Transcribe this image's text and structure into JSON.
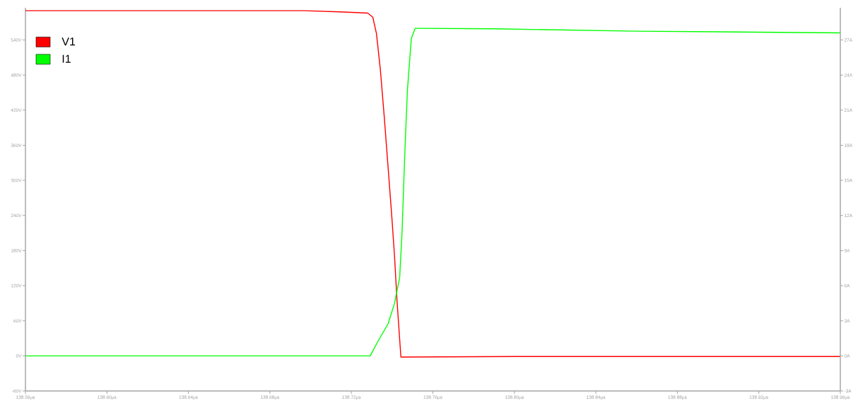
{
  "chart_data": {
    "type": "line",
    "series": [
      {
        "name": "V1",
        "color": "#ff0000",
        "x": [
          138.56,
          138.6967,
          138.714,
          138.728,
          138.7305,
          138.7323,
          138.7342,
          138.7361,
          138.738,
          138.7399,
          138.7412,
          138.7424,
          138.7443,
          138.7456,
          138.8,
          138.96
        ],
        "values": [
          590,
          590,
          588,
          586,
          579,
          551,
          490,
          410,
          323,
          235,
          169,
          94,
          -2,
          -2,
          -1,
          -1
        ]
      },
      {
        "name": "I1",
        "color": "#00ff00",
        "axis": "y2",
        "x": [
          138.56,
          138.7292,
          138.7329,
          138.738,
          138.7412,
          138.7437,
          138.7449,
          138.7462,
          138.7475,
          138.7494,
          138.7513,
          138.7544,
          138.7904,
          138.8598,
          138.9291,
          138.96
        ],
        "values": [
          0,
          0,
          1.2,
          2.74,
          4.5,
          6.7,
          10.7,
          17.2,
          22.7,
          27.1,
          28.0,
          28.0,
          27.95,
          27.75,
          27.65,
          27.6
        ]
      }
    ],
    "xlim": [
      138.56,
      138.96
    ],
    "xticks": [
      {
        "value": 138.56,
        "label": "138.56µs"
      },
      {
        "value": 138.6,
        "label": "138.60µs"
      },
      {
        "value": 138.64,
        "label": "138.64µs"
      },
      {
        "value": 138.68,
        "label": "138.68µs"
      },
      {
        "value": 138.72,
        "label": "138.72µs"
      },
      {
        "value": 138.76,
        "label": "138.76µs"
      },
      {
        "value": 138.8,
        "label": "138.80µs"
      },
      {
        "value": 138.84,
        "label": "138.84µs"
      },
      {
        "value": 138.88,
        "label": "138.88µs"
      },
      {
        "value": 138.92,
        "label": "138.92µs"
      },
      {
        "value": 138.96,
        "label": "138.96µs"
      }
    ],
    "ylim": [
      -60,
      595
    ],
    "yticks": [
      {
        "value": -60,
        "label": "-60V"
      },
      {
        "value": 0,
        "label": "0V"
      },
      {
        "value": 60,
        "label": "60V"
      },
      {
        "value": 120,
        "label": "120V"
      },
      {
        "value": 180,
        "label": "180V"
      },
      {
        "value": 240,
        "label": "240V"
      },
      {
        "value": 300,
        "label": "300V"
      },
      {
        "value": 360,
        "label": "360V"
      },
      {
        "value": 420,
        "label": "420V"
      },
      {
        "value": 480,
        "label": "480V"
      },
      {
        "value": 540,
        "label": "540V"
      }
    ],
    "y2lim": [
      -3,
      29.75
    ],
    "y2ticks": [
      {
        "value": -3,
        "label": "-3A"
      },
      {
        "value": 0,
        "label": "0A"
      },
      {
        "value": 3,
        "label": "3A"
      },
      {
        "value": 6,
        "label": "6A"
      },
      {
        "value": 9,
        "label": "9A"
      },
      {
        "value": 12,
        "label": "12A"
      },
      {
        "value": 15,
        "label": "15A"
      },
      {
        "value": 18,
        "label": "18A"
      },
      {
        "value": 21,
        "label": "21A"
      },
      {
        "value": 24,
        "label": "24A"
      },
      {
        "value": 27,
        "label": "27A"
      }
    ],
    "legend": "top left",
    "grid": false,
    "marker": "none",
    "line_style": "solid"
  }
}
